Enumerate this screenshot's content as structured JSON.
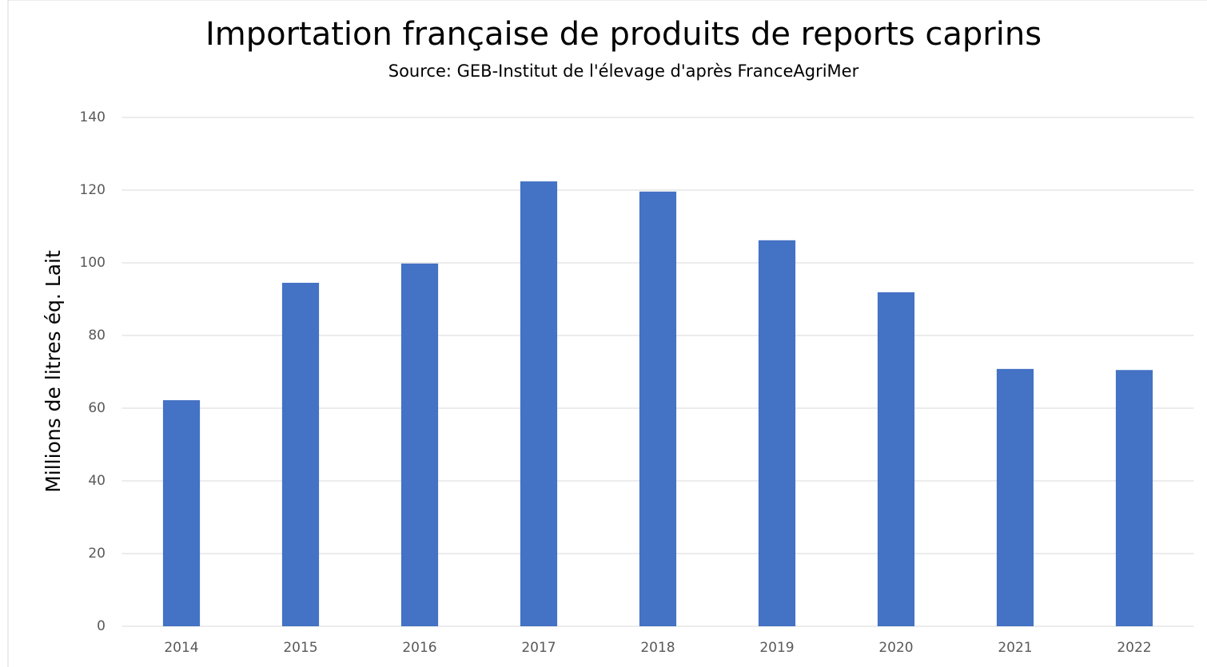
{
  "chart_data": {
    "type": "bar",
    "title": "Importation française de produits de reports caprins",
    "subtitle": "Source: GEB-Institut de l'élevage d'après FranceAgriMer",
    "y_label": "Millions de litres éq. Lait",
    "categories": [
      "2014",
      "2015",
      "2016",
      "2017",
      "2018",
      "2019",
      "2020",
      "2021",
      "2022"
    ],
    "values": [
      62.2,
      94.5,
      99.8,
      122.4,
      119.6,
      106.2,
      91.9,
      70.8,
      70.5
    ],
    "color": "#4472c4",
    "ylim": [
      0,
      140
    ],
    "yticks": [
      0,
      20,
      40,
      60,
      80,
      100,
      120,
      140
    ],
    "grid": true
  }
}
